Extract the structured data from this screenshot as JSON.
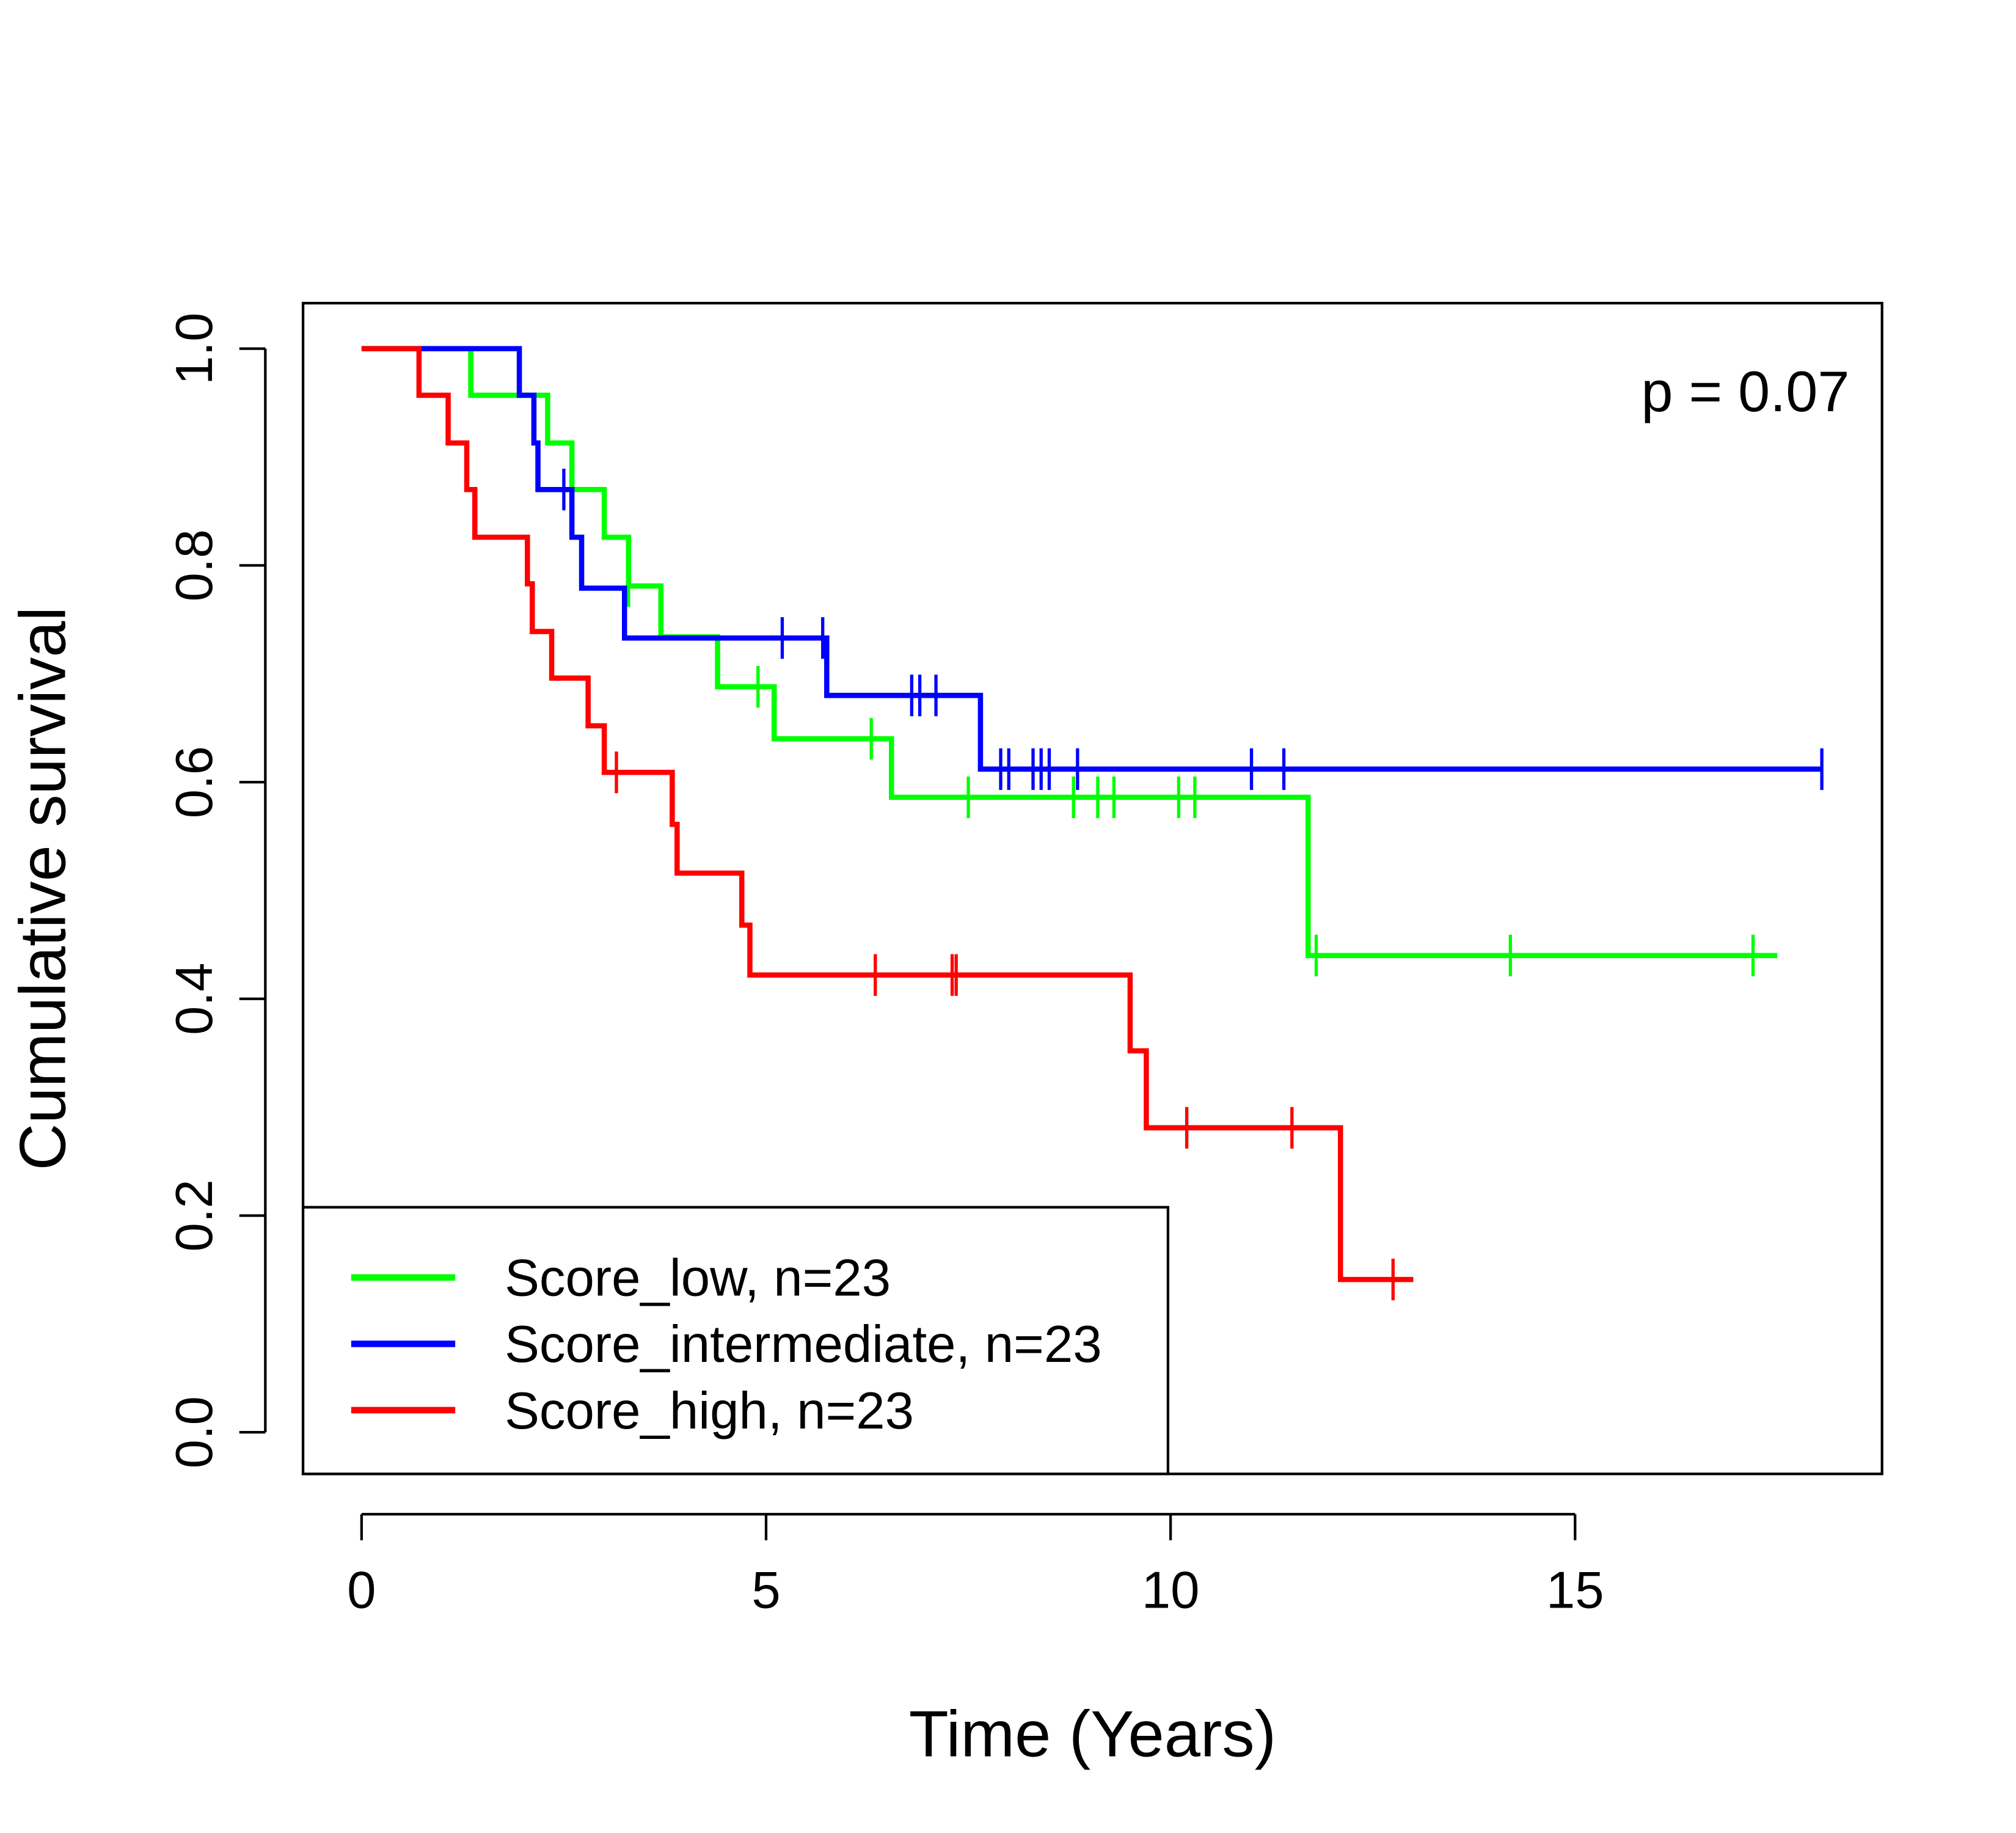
{
  "chart_data": {
    "type": "line",
    "subtype": "kaplan-meier",
    "title": "",
    "xlabel": "Time (Years)",
    "ylabel": "Cumulative survival",
    "xlim": [
      0,
      18.5
    ],
    "ylim": [
      0,
      1
    ],
    "xticks": [
      0,
      5,
      10,
      15
    ],
    "xtick_labels": [
      "0",
      "5",
      "10",
      "15"
    ],
    "yticks": [
      0,
      0.2,
      0.4,
      0.6,
      0.8,
      1.0
    ],
    "ytick_labels": [
      "0.0",
      "0.2",
      "0.4",
      "0.6",
      "0.8",
      "1.0"
    ],
    "grid": false,
    "legend_position": "bottom-left",
    "annotation": "p = 0.07",
    "series": [
      {
        "name": "Score_low, n=23",
        "color": "#00ff00",
        "steps": [
          [
            0,
            1.0
          ],
          [
            1.35,
            0.957
          ],
          [
            2.3,
            0.913
          ],
          [
            2.6,
            0.87
          ],
          [
            3.0,
            0.826
          ],
          [
            3.3,
            0.781
          ],
          [
            3.7,
            0.734
          ],
          [
            4.4,
            0.688
          ],
          [
            5.1,
            0.64
          ],
          [
            6.55,
            0.586
          ],
          [
            11.7,
            0.44
          ]
        ],
        "end": 17.5,
        "censored": [
          3.3,
          4.9,
          6.3,
          7.5,
          8.8,
          9.1,
          9.3,
          10.1,
          10.3,
          11.8,
          14.2,
          17.2
        ]
      },
      {
        "name": "Score_intermediate, n=23",
        "color": "#0000ff",
        "steps": [
          [
            0,
            1.0
          ],
          [
            1.95,
            0.957
          ],
          [
            2.13,
            0.913
          ],
          [
            2.18,
            0.87
          ],
          [
            2.6,
            0.826
          ],
          [
            2.72,
            0.779
          ],
          [
            3.25,
            0.733
          ],
          [
            5.75,
            0.68
          ],
          [
            7.65,
            0.612
          ]
        ],
        "end": 18.05,
        "censored": [
          2.5,
          5.2,
          5.7,
          6.8,
          6.9,
          7.1,
          7.9,
          8.0,
          8.3,
          8.4,
          8.5,
          8.85,
          11.0,
          11.4,
          18.05
        ]
      },
      {
        "name": "Score_high, n=23",
        "color": "#ff0000",
        "steps": [
          [
            0,
            1.0
          ],
          [
            0.71,
            0.957
          ],
          [
            1.07,
            0.913
          ],
          [
            1.3,
            0.87
          ],
          [
            1.4,
            0.826
          ],
          [
            2.05,
            0.783
          ],
          [
            2.11,
            0.739
          ],
          [
            2.35,
            0.696
          ],
          [
            2.8,
            0.652
          ],
          [
            3.0,
            0.609
          ],
          [
            3.84,
            0.561
          ],
          [
            3.9,
            0.516
          ],
          [
            4.7,
            0.468
          ],
          [
            4.8,
            0.422
          ],
          [
            9.5,
            0.352
          ],
          [
            9.7,
            0.281
          ],
          [
            12.1,
            0.141
          ]
        ],
        "end": 13.0,
        "censored": [
          3.15,
          6.35,
          7.3,
          7.35,
          10.2,
          11.5,
          12.75
        ]
      }
    ]
  }
}
